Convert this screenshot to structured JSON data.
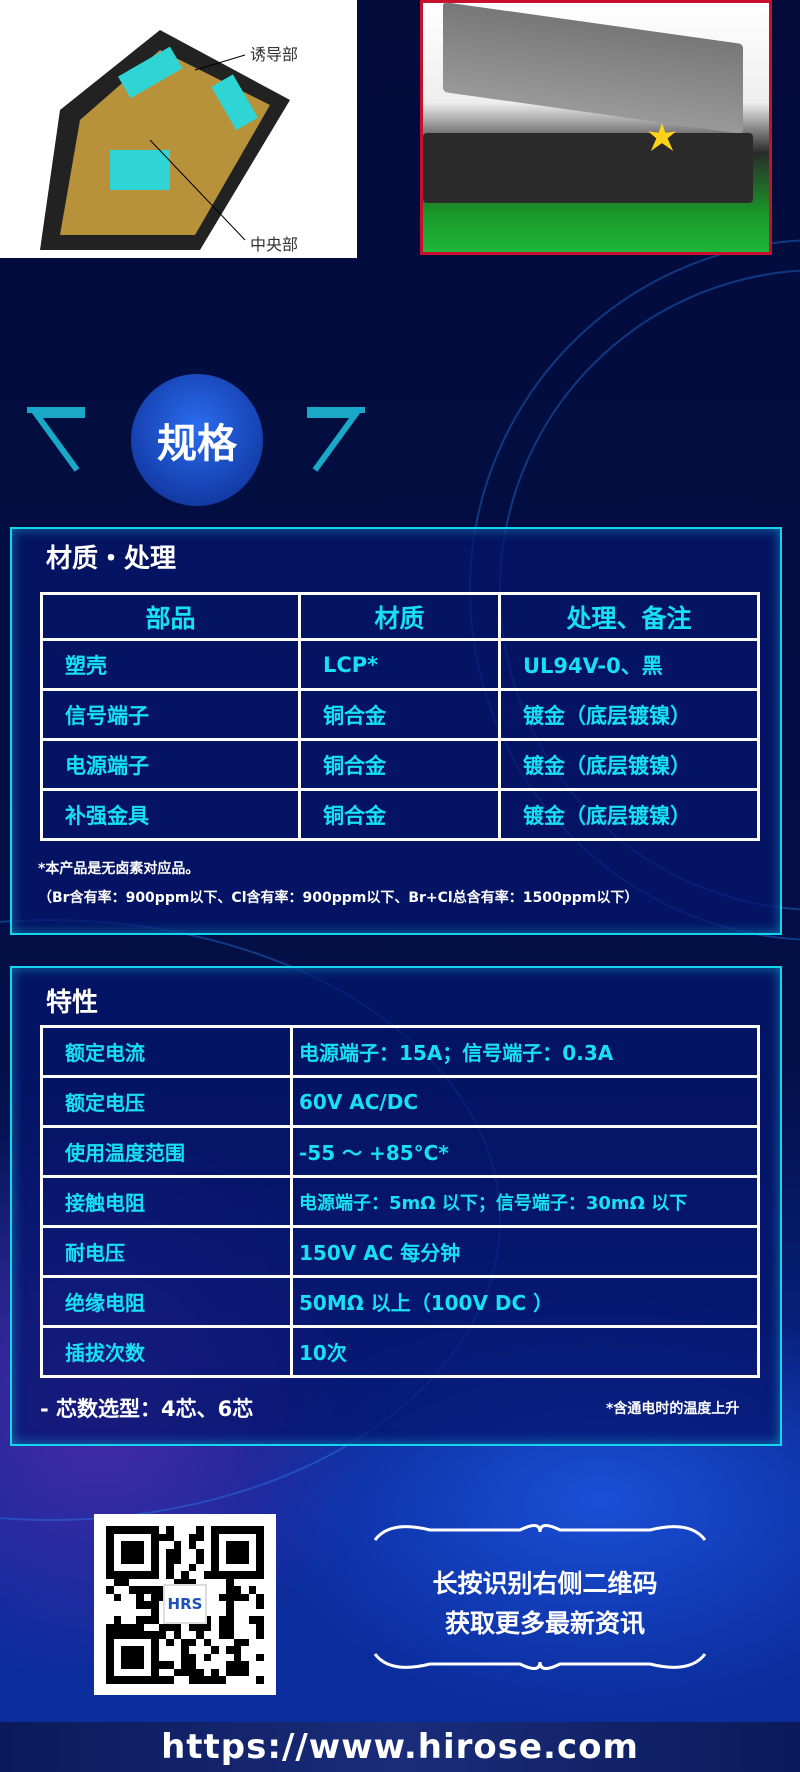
{
  "top_images": {
    "left_labels": [
      "诱导部",
      "中央部"
    ]
  },
  "heading": "规格",
  "materials": {
    "title": "材质・处理",
    "headers": [
      "部品",
      "材质",
      "处理、备注"
    ],
    "rows": [
      [
        "塑壳",
        "LCP*",
        "UL94V-0、黑"
      ],
      [
        "信号端子",
        "铜合金",
        "镀金（底层镀镍）"
      ],
      [
        "电源端子",
        "铜合金",
        "镀金（底层镀镍）"
      ],
      [
        "补强金具",
        "铜合金",
        "镀金（底层镀镍）"
      ]
    ],
    "note1": "*本产品是无卤素对应品。",
    "note2": "（Br含有率：900ppm以下、Cl含有率：900ppm以下、Br+Cl总含有率：1500ppm以下）"
  },
  "specs": {
    "title": "特性",
    "rows": [
      [
        "额定电流",
        "电源端子：15A；信号端子：0.3A"
      ],
      [
        "额定电压",
        "60V AC/DC"
      ],
      [
        "使用温度范围",
        "-55 ～ +85°C*"
      ],
      [
        "接触电阻",
        "电源端子：5mΩ 以下；信号端子：30mΩ 以下"
      ],
      [
        "耐电压",
        "150V AC 每分钟"
      ],
      [
        "绝缘电阻",
        "50MΩ 以上（100V DC ）"
      ],
      [
        "插拔次数",
        "10次"
      ]
    ],
    "cores": "- 芯数选型：4芯、6芯",
    "footnote": "*含通电时的温度上升"
  },
  "qr": {
    "logo": "HRS"
  },
  "cta": {
    "line1": "长按识别右侧二维码",
    "line2": "获取更多最新资讯"
  },
  "url": "https://www.hirose.com",
  "colors": {
    "accent": "#18e0f4",
    "panel_border": "#15d4ee",
    "background": "#020b3a",
    "image_border": "#c8102e"
  }
}
